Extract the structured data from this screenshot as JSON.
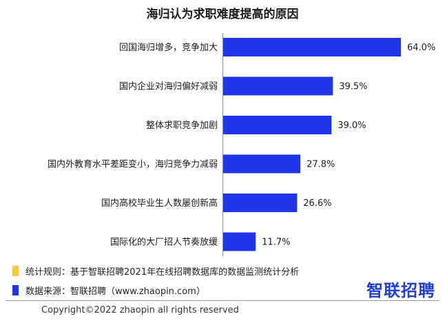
{
  "chart_data": {
    "type": "bar",
    "orientation": "horizontal",
    "title": "海归认为求职难度提高的原因",
    "categories": [
      "回国海归增多，竞争加大",
      "国内企业对海归偏好减弱",
      "整体求职竞争加剧",
      "国内外教育水平差距变小，海归竞争力减弱",
      "国内高校毕业生人数屡创新高",
      "国际化的大厂招人节奏放缓"
    ],
    "values": [
      64.0,
      39.5,
      39.0,
      27.8,
      26.6,
      11.7
    ],
    "value_labels": [
      "64.0%",
      "39.5%",
      "39.0%",
      "27.8%",
      "26.6%",
      "11.7%"
    ],
    "xlim": [
      0,
      64.0
    ],
    "bar_color": "#1f36e8",
    "grid": false,
    "legend": "none"
  },
  "notes": {
    "rule": {
      "text": "统计规则：基于智联招聘2021年在线招聘数据库的数据监测统计分析",
      "color": "#f5c842"
    },
    "source": {
      "text": "数据来源：智联招聘（www.zhaopin.com）",
      "color": "#1f36e8"
    }
  },
  "logo": {
    "text": "智联招聘"
  },
  "copyright": "Copyright©2022 zhaopin all rights reserved"
}
